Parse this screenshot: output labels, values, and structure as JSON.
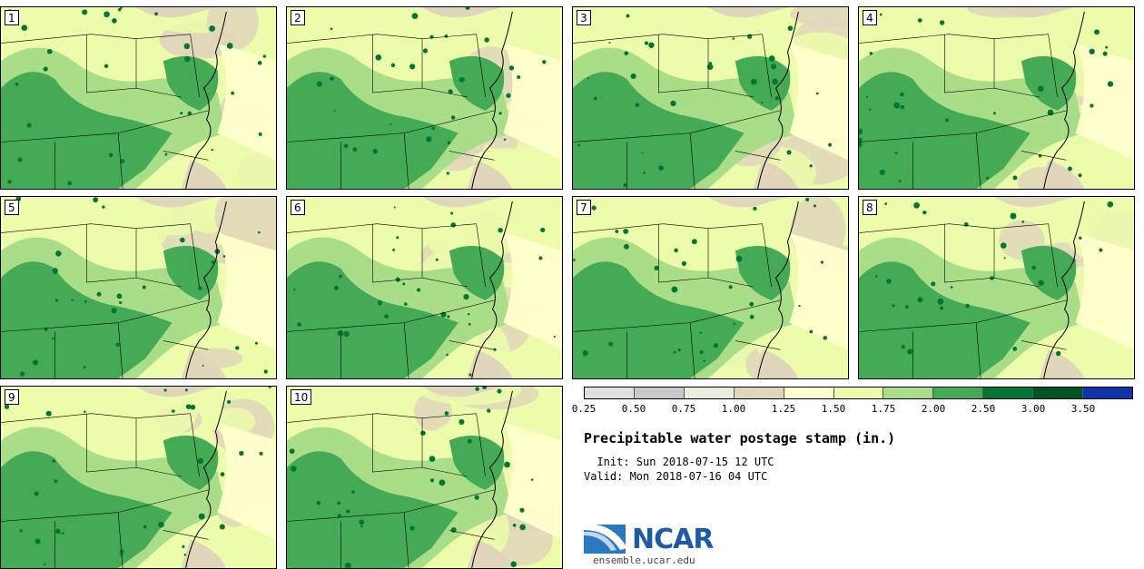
{
  "panels": [
    {
      "label": "1"
    },
    {
      "label": "2"
    },
    {
      "label": "3"
    },
    {
      "label": "4"
    },
    {
      "label": "5"
    },
    {
      "label": "6"
    },
    {
      "label": "7"
    },
    {
      "label": "8"
    },
    {
      "label": "9"
    },
    {
      "label": "10"
    }
  ],
  "legend": {
    "colors": [
      "#e0e0e0",
      "#c8c8c8",
      "#ededdf",
      "#e0d6bb",
      "#ffffcc",
      "#ecfcaa",
      "#aadd88",
      "#44aa55",
      "#007733",
      "#005522",
      "#1133aa"
    ],
    "ticks": [
      "0.25",
      "0.50",
      "0.75",
      "1.00",
      "1.25",
      "1.50",
      "1.75",
      "2.00",
      "2.50",
      "3.00",
      "3.50"
    ]
  },
  "title": "Precipitable water postage stamp (in.)",
  "init": "  Init: Sun 2018-07-15 12 UTC",
  "valid": "Valid: Mon 2018-07-16 04 UTC",
  "logo": {
    "text": "NCAR",
    "url": "ensemble.ucar.edu"
  },
  "map_colors": {
    "ocean": "#ffffcc",
    "light": "#ecfcaa",
    "mid": "#aadd88",
    "dark": "#44aa55",
    "darkest": "#007733",
    "dry": "#e0d6bb",
    "grey": "#d0d0d0"
  }
}
